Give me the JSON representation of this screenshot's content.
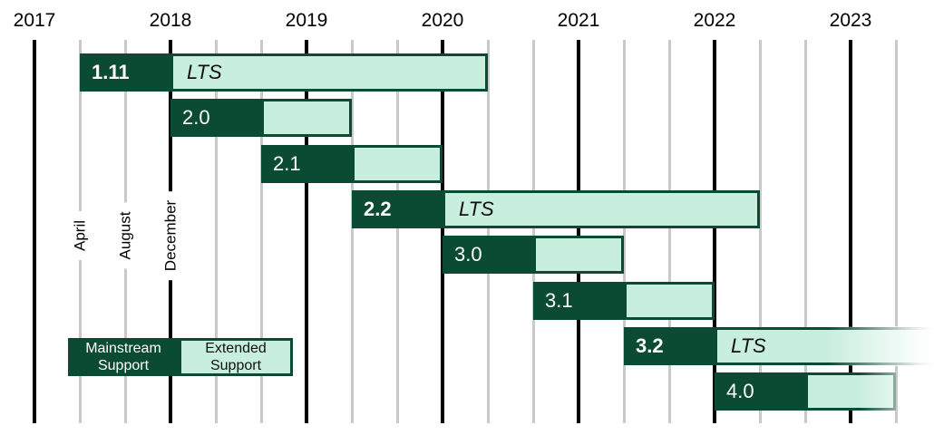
{
  "chart_data": {
    "type": "gantt",
    "title": "",
    "years": [
      "2017",
      "2018",
      "2019",
      "2020",
      "2021",
      "2022",
      "2023"
    ],
    "month_gridline_labels": [
      "April",
      "August",
      "December"
    ],
    "months_per_gridline": 4,
    "lts_label": "LTS",
    "bars": [
      {
        "version": "1.11",
        "lts": true,
        "start": "2017-04",
        "mainstream_until": "2017-12",
        "extended_until": "2020-04"
      },
      {
        "version": "2.0",
        "lts": false,
        "start": "2017-12",
        "mainstream_until": "2018-08",
        "extended_until": "2019-04"
      },
      {
        "version": "2.1",
        "lts": false,
        "start": "2018-08",
        "mainstream_until": "2019-04",
        "extended_until": "2019-12"
      },
      {
        "version": "2.2",
        "lts": true,
        "start": "2019-04",
        "mainstream_until": "2019-12",
        "extended_until": "2022-04"
      },
      {
        "version": "3.0",
        "lts": false,
        "start": "2019-12",
        "mainstream_until": "2020-08",
        "extended_until": "2021-04"
      },
      {
        "version": "3.1",
        "lts": false,
        "start": "2020-08",
        "mainstream_until": "2021-04",
        "extended_until": "2021-12"
      },
      {
        "version": "3.2",
        "lts": true,
        "start": "2021-04",
        "mainstream_until": "2021-12",
        "extended_until": "2024-04",
        "extends_beyond_chart": true
      },
      {
        "version": "4.0",
        "lts": false,
        "start": "2021-12",
        "mainstream_until": "2022-08",
        "extended_until": "2023-04",
        "faded_right_edge": true
      }
    ]
  },
  "legend": {
    "mainstream": "Mainstream Support",
    "extended": "Extended Support"
  },
  "colors": {
    "mainstream_fill": "#0C4B33",
    "extended_fill": "#C8EEDE",
    "extended_border": "#0C4B33",
    "grid_major": "#000000",
    "grid_minor": "#C9C9C9",
    "label_dark": "#111111",
    "label_light": "#FFFFFF"
  }
}
